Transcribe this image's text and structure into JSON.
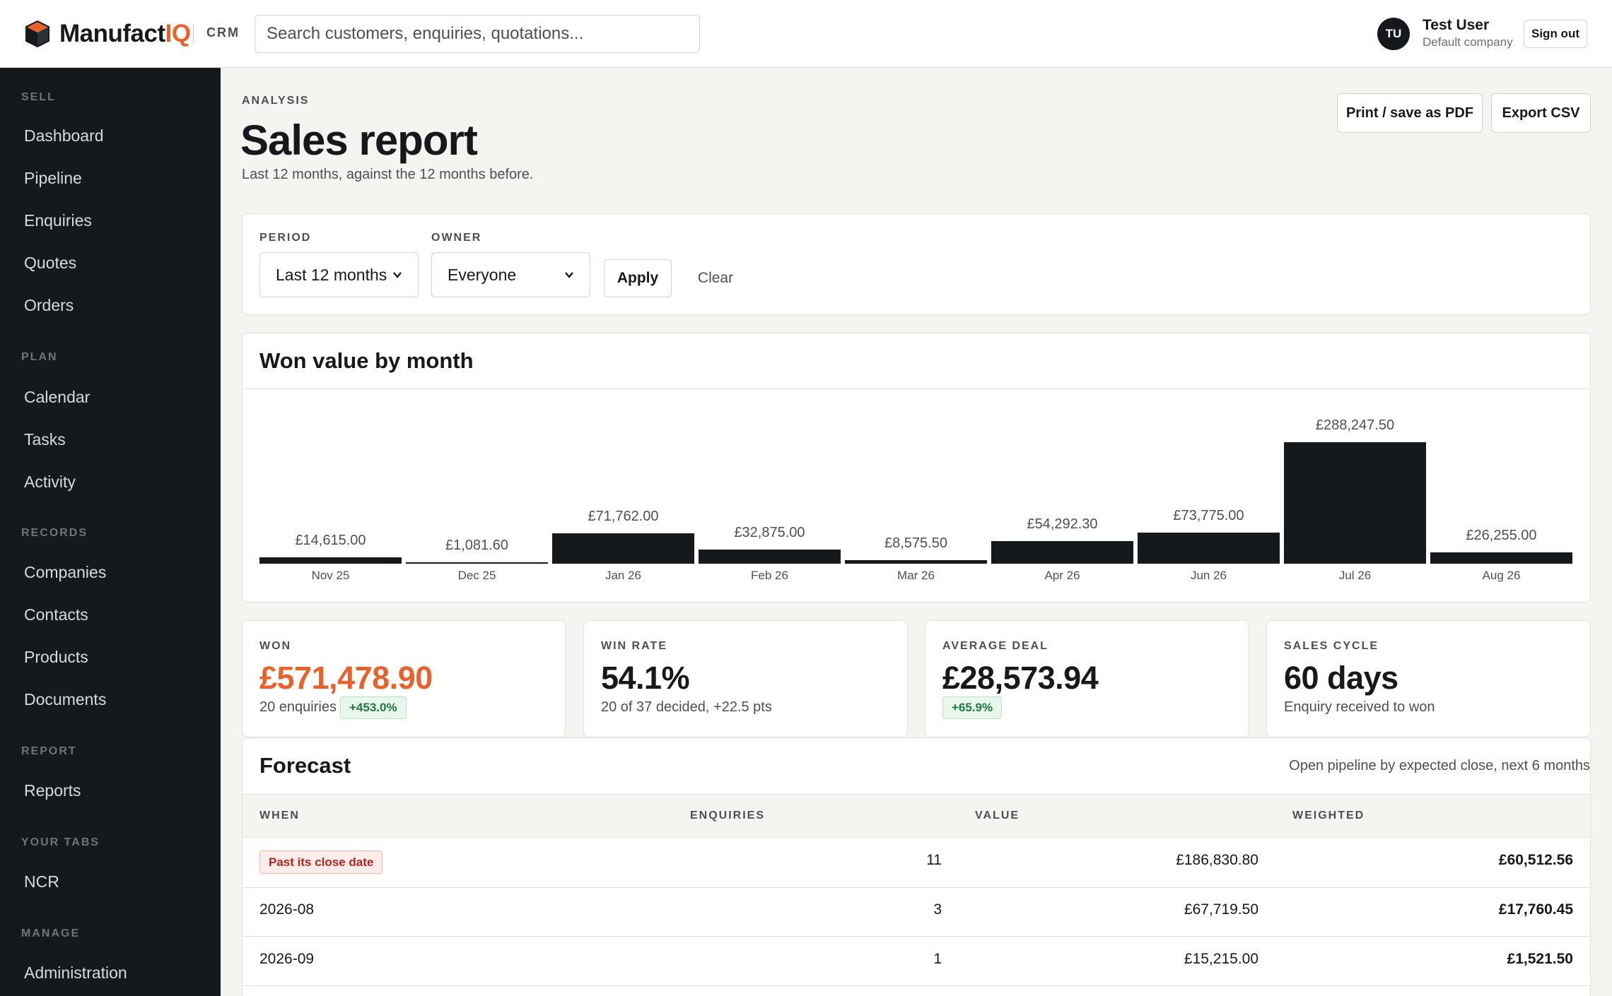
{
  "header": {
    "logo_text": "Manufact",
    "logo_accent": "IQ",
    "product_tag": "CRM",
    "search_placeholder": "Search customers, enquiries, quotations...",
    "user_initials": "TU",
    "user_name": "Test User",
    "user_company": "Default company",
    "sign_out_label": "Sign out"
  },
  "sidebar": {
    "sell": {
      "label": "SELL",
      "items": [
        "Dashboard",
        "Pipeline",
        "Enquiries",
        "Quotes",
        "Orders"
      ]
    },
    "plan": {
      "label": "PLAN",
      "items": [
        "Calendar",
        "Tasks",
        "Activity"
      ]
    },
    "records": {
      "label": "RECORDS",
      "items": [
        "Companies",
        "Contacts",
        "Products",
        "Documents"
      ]
    },
    "report": {
      "label": "REPORT",
      "items": [
        "Reports"
      ]
    },
    "your_tabs": {
      "label": "YOUR TABS",
      "items": [
        "NCR"
      ]
    },
    "manage": {
      "label": "MANAGE",
      "items": [
        "Administration"
      ]
    }
  },
  "page": {
    "eyebrow": "ANALYSIS",
    "title": "Sales report",
    "subtitle": "Last 12 months, against the 12 months before.",
    "print_label": "Print / save as PDF",
    "export_label": "Export CSV"
  },
  "filters": {
    "period_label": "PERIOD",
    "period_value": "Last 12 months",
    "owner_label": "OWNER",
    "owner_value": "Everyone",
    "apply_label": "Apply",
    "clear_label": "Clear"
  },
  "chart_card": {
    "title": "Won value by month"
  },
  "chart_data": {
    "type": "bar",
    "categories": [
      "Nov 25",
      "Dec 25",
      "Jan 26",
      "Feb 26",
      "Mar 26",
      "Apr 26",
      "Jun 26",
      "Jul 26",
      "Aug 26"
    ],
    "values": [
      14615.0,
      1081.6,
      71762.0,
      32875.0,
      8575.5,
      54292.3,
      73775.0,
      288247.5,
      26255.0
    ],
    "value_labels": [
      "£14,615.00",
      "£1,081.60",
      "£71,762.00",
      "£32,875.00",
      "£8,575.50",
      "£54,292.30",
      "£73,775.00",
      "£288,247.50",
      "£26,255.00"
    ],
    "title": "Won value by month",
    "xlabel": "",
    "ylabel": "",
    "ylim": [
      0,
      288247.5
    ],
    "grid": false,
    "bar_color": "#16191c"
  },
  "kpis": {
    "won": {
      "label": "WON",
      "value": "£571,478.90",
      "note": "20 enquiries",
      "badge": "+453.0%"
    },
    "win_rate": {
      "label": "WIN RATE",
      "value": "54.1%",
      "note": "20 of 37 decided, +22.5 pts"
    },
    "average_deal": {
      "label": "AVERAGE DEAL",
      "value": "£28,573.94",
      "badge": "+65.9%"
    },
    "sales_cycle": {
      "label": "SALES CYCLE",
      "value": "60 days",
      "note": "Enquiry received to won"
    }
  },
  "forecast": {
    "title": "Forecast",
    "subtitle": "Open pipeline by expected close, next 6 months",
    "columns": [
      "WHEN",
      "ENQUIRIES",
      "VALUE",
      "WEIGHTED"
    ],
    "rows": [
      {
        "when": "Past its close date",
        "enquiries": "11",
        "value": "£186,830.80",
        "weighted": "£60,512.56"
      },
      {
        "when": "2026-08",
        "enquiries": "3",
        "value": "£67,719.50",
        "weighted": "£17,760.45"
      },
      {
        "when": "2026-09",
        "enquiries": "1",
        "value": "£15,215.00",
        "weighted": "£1,521.50"
      }
    ]
  },
  "colors": {
    "accent": "#e8622c",
    "sidebar_bg": "#16191c",
    "page_bg": "#f5f4f1",
    "positive": "#1f7a3e",
    "alert": "#b3261e"
  }
}
